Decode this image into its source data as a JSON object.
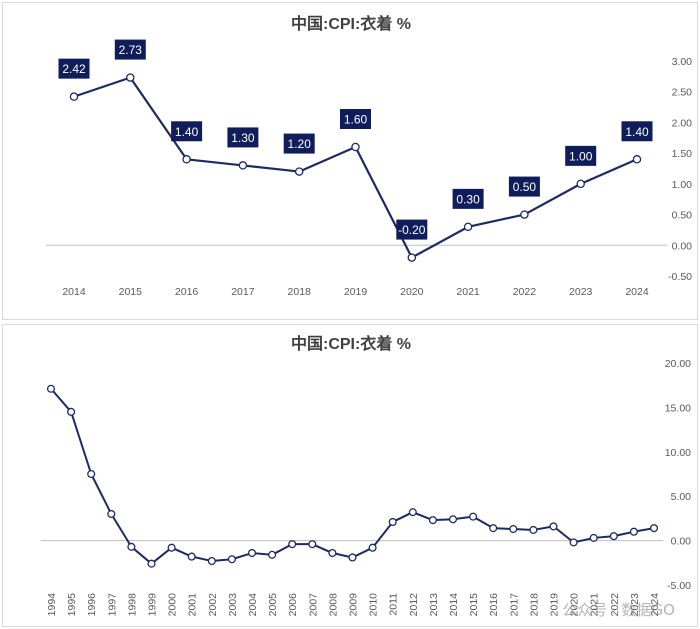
{
  "colors": {
    "line": "#1F2A63",
    "label_bg": "#0F1E5A",
    "axis": "#BFBFBF"
  },
  "watermark": "公众号 · 数据GO",
  "chart_data": [
    {
      "type": "line",
      "title": "中国:CPI:衣着 %",
      "categories": [
        "2014",
        "2015",
        "2016",
        "2017",
        "2018",
        "2019",
        "2020",
        "2021",
        "2022",
        "2023",
        "2024"
      ],
      "values": [
        2.42,
        2.73,
        1.4,
        1.3,
        1.2,
        1.6,
        -0.2,
        0.3,
        0.5,
        1.0,
        1.4
      ],
      "data_labels": [
        "2.42",
        "2.73",
        "1.40",
        "1.30",
        "1.20",
        "1.60",
        "-0.20",
        "0.30",
        "0.50",
        "1.00",
        "1.40"
      ],
      "y_ticks": [
        "3.00",
        "2.50",
        "2.00",
        "1.50",
        "1.00",
        "0.50",
        "0.00",
        "-0.50"
      ],
      "y_tick_values": [
        3.0,
        2.5,
        2.0,
        1.5,
        1.0,
        0.5,
        0.0,
        -0.5
      ],
      "ylim": [
        -0.5,
        3.0
      ],
      "y_axis_position": "right",
      "grid": false
    },
    {
      "type": "line",
      "title": "中国:CPI:衣着 %",
      "categories": [
        "1994",
        "1995",
        "1996",
        "1997",
        "1998",
        "1999",
        "2000",
        "2001",
        "2002",
        "2003",
        "2004",
        "2005",
        "2006",
        "2007",
        "2008",
        "2009",
        "2010",
        "2011",
        "2012",
        "2013",
        "2014",
        "2015",
        "2016",
        "2017",
        "2018",
        "2019",
        "2020",
        "2021",
        "2022",
        "2023",
        "2024"
      ],
      "values": [
        17.1,
        14.5,
        7.5,
        3.0,
        -0.7,
        -2.6,
        -0.8,
        -1.8,
        -2.3,
        -2.1,
        -1.4,
        -1.6,
        -0.4,
        -0.4,
        -1.4,
        -1.9,
        -0.8,
        2.1,
        3.2,
        2.3,
        2.4,
        2.7,
        1.4,
        1.3,
        1.2,
        1.6,
        -0.2,
        0.3,
        0.5,
        1.0,
        1.4
      ],
      "y_ticks": [
        "20.00",
        "15.00",
        "10.00",
        "5.00",
        "0.00",
        "-5.00"
      ],
      "y_tick_values": [
        20,
        15,
        10,
        5,
        0,
        -5
      ],
      "ylim": [
        -5,
        20
      ],
      "y_axis_position": "right",
      "grid": false
    }
  ]
}
